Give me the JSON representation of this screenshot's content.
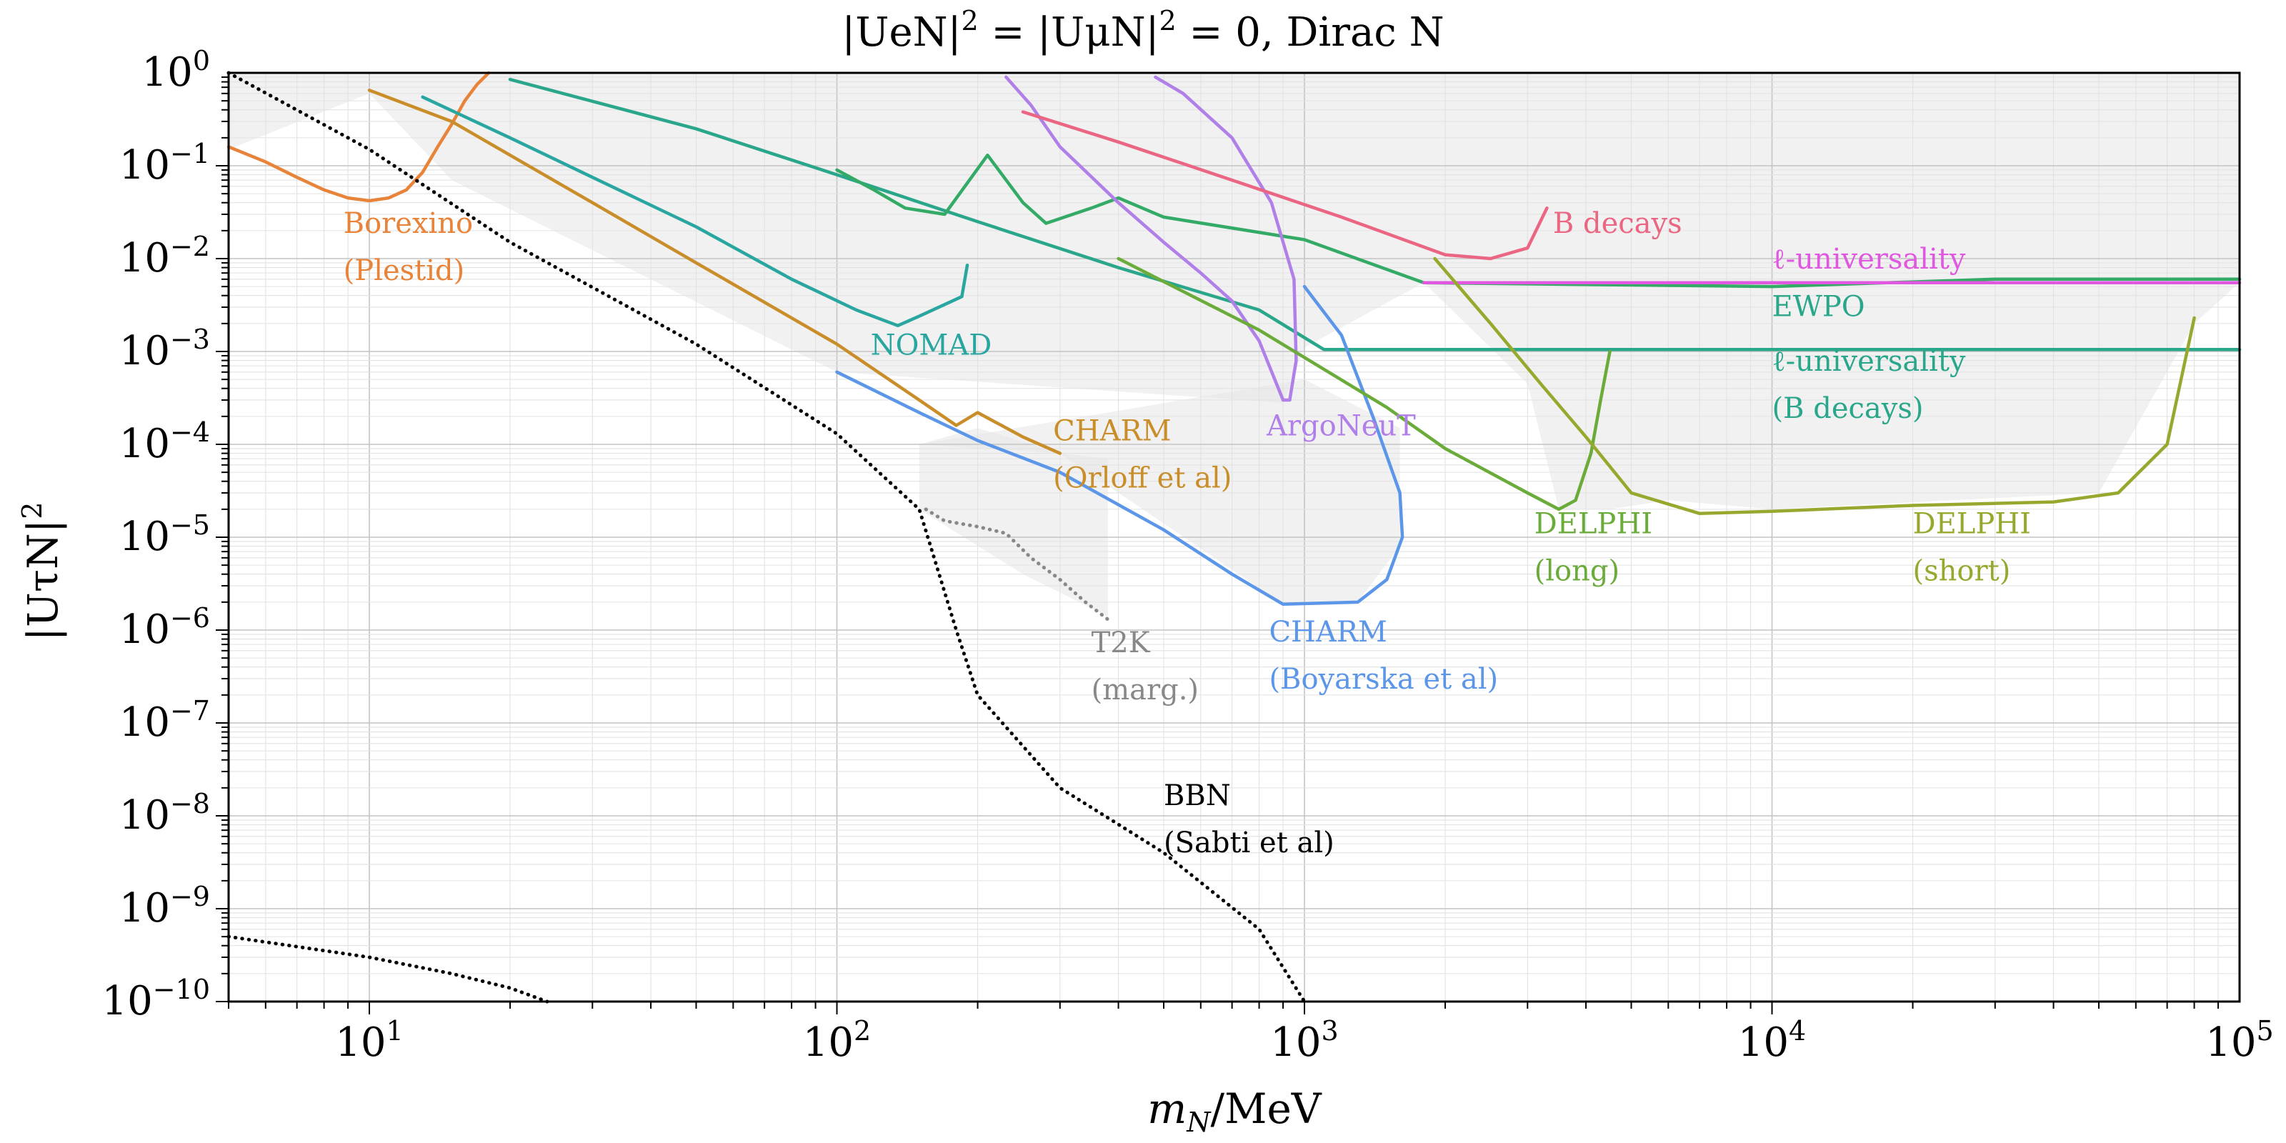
{
  "chart_data": {
    "type": "line",
    "title": "|U_eN|^2 = |U_μN|^2 = 0, Dirac N",
    "xlabel": "m_N/MeV",
    "ylabel": "|U_τN|^2",
    "x_scale": "log",
    "y_scale": "log",
    "xlim": [
      5,
      100000
    ],
    "ylim": [
      1e-10,
      1
    ],
    "grid": true,
    "x_ticks": [
      {
        "value": 10,
        "label": "10^1"
      },
      {
        "value": 100,
        "label": "10^2"
      },
      {
        "value": 1000,
        "label": "10^3"
      },
      {
        "value": 10000,
        "label": "10^4"
      },
      {
        "value": 100000,
        "label": "10^5"
      }
    ],
    "y_ticks": [
      {
        "value": 1,
        "label": "10^0"
      },
      {
        "value": 0.1,
        "label": "10^-1"
      },
      {
        "value": 0.01,
        "label": "10^-2"
      },
      {
        "value": 0.001,
        "label": "10^-3"
      },
      {
        "value": 0.0001,
        "label": "10^-4"
      },
      {
        "value": 1e-05,
        "label": "10^-5"
      },
      {
        "value": 1e-06,
        "label": "10^-6"
      },
      {
        "value": 1e-07,
        "label": "10^-7"
      },
      {
        "value": 1e-08,
        "label": "10^-8"
      },
      {
        "value": 1e-09,
        "label": "10^-9"
      },
      {
        "value": 1e-10,
        "label": "10^-10"
      }
    ],
    "shading": {
      "color": "#e6e6e6",
      "regions": [
        [
          [
            5,
            1
          ],
          [
            100000,
            1
          ],
          [
            100000,
            0.0055
          ],
          [
            1800,
            0.0055
          ],
          [
            1000,
            0.0011
          ],
          [
            900,
            0.00028
          ],
          [
            100,
            0.0006
          ],
          [
            15,
            0.07
          ],
          [
            10,
            0.6
          ],
          [
            5,
            0.15
          ]
        ],
        [
          [
            150,
            0.0001
          ],
          [
            200,
            0.00015
          ],
          [
            300,
            8e-05
          ],
          [
            380,
            7e-05
          ],
          [
            380,
            1.4e-06
          ],
          [
            250,
            4e-06
          ],
          [
            150,
            2e-05
          ]
        ],
        [
          [
            150,
            0.0001
          ],
          [
            300,
            8e-05
          ],
          [
            900,
            1.9e-06
          ],
          [
            1300,
            2e-06
          ],
          [
            1600,
            8e-06
          ],
          [
            1600,
            0.00015
          ],
          [
            1000,
            0.0005
          ]
        ],
        [
          [
            1800,
            0.0055
          ],
          [
            3000,
            0.00045
          ],
          [
            3500,
            2e-05
          ],
          [
            4500,
            2e-05
          ],
          [
            6000,
            2.5e-05
          ],
          [
            10000,
            2e-05
          ],
          [
            50000,
            3e-05
          ],
          [
            80000,
            0.002
          ],
          [
            100000,
            0.0055
          ]
        ]
      ]
    },
    "series": [
      {
        "label": "Borexino (Plestid)",
        "color": "#e8833a",
        "style": "solid",
        "points": [
          [
            5,
            0.16
          ],
          [
            6,
            0.11
          ],
          [
            7,
            0.075
          ],
          [
            8,
            0.055
          ],
          [
            9,
            0.045
          ],
          [
            10,
            0.042
          ],
          [
            11,
            0.045
          ],
          [
            12,
            0.055
          ],
          [
            13,
            0.085
          ],
          [
            14,
            0.16
          ],
          [
            15,
            0.28
          ],
          [
            16,
            0.5
          ],
          [
            17,
            0.75
          ],
          [
            18,
            1
          ]
        ]
      },
      {
        "label": "CHARM (Orloff et al)",
        "color": "#c98e2a",
        "style": "solid",
        "points": [
          [
            10,
            0.65
          ],
          [
            15,
            0.3
          ],
          [
            20,
            0.13
          ],
          [
            30,
            0.04
          ],
          [
            50,
            0.009
          ],
          [
            100,
            0.0012
          ],
          [
            150,
            0.0003
          ],
          [
            180,
            0.00016
          ],
          [
            200,
            0.00022
          ],
          [
            250,
            0.00012
          ],
          [
            300,
            8e-05
          ]
        ]
      },
      {
        "label": "NOMAD",
        "color": "#2aa6a0",
        "style": "solid",
        "points": [
          [
            13,
            0.55
          ],
          [
            20,
            0.2
          ],
          [
            30,
            0.075
          ],
          [
            50,
            0.022
          ],
          [
            80,
            0.006
          ],
          [
            110,
            0.0028
          ],
          [
            135,
            0.0019
          ],
          [
            150,
            0.0024
          ],
          [
            170,
            0.0032
          ],
          [
            185,
            0.0039
          ],
          [
            190,
            0.0085
          ]
        ]
      },
      {
        "label": "ℓ-universality (B decays)",
        "color": "#2aa68a",
        "style": "solid",
        "points": [
          [
            20,
            0.85
          ],
          [
            50,
            0.25
          ],
          [
            100,
            0.08
          ],
          [
            200,
            0.025
          ],
          [
            400,
            0.008
          ],
          [
            800,
            0.0028
          ],
          [
            1100,
            0.00105
          ],
          [
            3000,
            0.00105
          ],
          [
            100000,
            0.00105
          ]
        ]
      },
      {
        "label": "EWPO",
        "color": "#33aa66",
        "style": "solid",
        "points": [
          [
            100,
            0.09
          ],
          [
            120,
            0.055
          ],
          [
            140,
            0.035
          ],
          [
            170,
            0.03
          ],
          [
            210,
            0.13
          ],
          [
            250,
            0.04
          ],
          [
            280,
            0.024
          ],
          [
            350,
            0.035
          ],
          [
            400,
            0.045
          ],
          [
            500,
            0.028
          ],
          [
            1000,
            0.016
          ],
          [
            1800,
            0.0055
          ],
          [
            10000,
            0.005
          ],
          [
            30000,
            0.006
          ],
          [
            100000,
            0.006
          ]
        ]
      },
      {
        "label": "ArgoNeuT",
        "color": "#b07fe8",
        "style": "solid",
        "points": [
          [
            230,
            0.9
          ],
          [
            260,
            0.45
          ],
          [
            300,
            0.16
          ],
          [
            400,
            0.04
          ],
          [
            500,
            0.015
          ],
          [
            600,
            0.007
          ],
          [
            700,
            0.0035
          ],
          [
            800,
            0.0013
          ],
          [
            900,
            0.0003
          ],
          [
            930,
            0.0003
          ],
          [
            960,
            0.0008
          ],
          [
            950,
            0.006
          ],
          [
            850,
            0.04
          ],
          [
            700,
            0.2
          ],
          [
            550,
            0.6
          ],
          [
            480,
            0.9
          ]
        ]
      },
      {
        "label": "B decays",
        "color": "#ea6683",
        "style": "solid",
        "points": [
          [
            250,
            0.38
          ],
          [
            400,
            0.18
          ],
          [
            700,
            0.07
          ],
          [
            1200,
            0.028
          ],
          [
            2000,
            0.011
          ],
          [
            2500,
            0.01
          ],
          [
            3000,
            0.013
          ],
          [
            3300,
            0.035
          ]
        ]
      },
      {
        "label": "ℓ-universality",
        "color": "#e058e0",
        "style": "solid",
        "points": [
          [
            1800,
            0.0055
          ],
          [
            100000,
            0.0055
          ]
        ]
      },
      {
        "label": "CHARM (Boyarska et al)",
        "color": "#5b96e8",
        "style": "solid",
        "points": [
          [
            100,
            0.0006
          ],
          [
            150,
            0.00022
          ],
          [
            200,
            0.00011
          ],
          [
            300,
            5e-05
          ],
          [
            500,
            1.2e-05
          ],
          [
            700,
            4e-06
          ],
          [
            900,
            1.9e-06
          ],
          [
            1300,
            2e-06
          ],
          [
            1500,
            3.5e-06
          ],
          [
            1620,
            1e-05
          ],
          [
            1600,
            3e-05
          ],
          [
            1400,
            0.0002
          ],
          [
            1200,
            0.0015
          ],
          [
            1000,
            0.005
          ]
        ]
      },
      {
        "label": "DELPHI (long)",
        "color": "#6aab3a",
        "style": "solid",
        "points": [
          [
            400,
            0.01
          ],
          [
            800,
            0.0017
          ],
          [
            1500,
            0.00025
          ],
          [
            2000,
            9e-05
          ],
          [
            3000,
            3e-05
          ],
          [
            3500,
            2e-05
          ],
          [
            3800,
            2.5e-05
          ],
          [
            4100,
            8e-05
          ],
          [
            4300,
            0.0003
          ],
          [
            4500,
            0.001
          ]
        ]
      },
      {
        "label": "DELPHI (short)",
        "color": "#98a82e",
        "style": "solid",
        "points": [
          [
            1900,
            0.01
          ],
          [
            2500,
            0.002
          ],
          [
            3200,
            0.00045
          ],
          [
            4000,
            0.00012
          ],
          [
            5000,
            3e-05
          ],
          [
            7000,
            1.8e-05
          ],
          [
            10000,
            1.9e-05
          ],
          [
            20000,
            2.2e-05
          ],
          [
            40000,
            2.4e-05
          ],
          [
            55000,
            3e-05
          ],
          [
            70000,
            0.0001
          ],
          [
            80000,
            0.0023
          ]
        ]
      },
      {
        "label": "T2K (marg.)",
        "color": "#888888",
        "style": "dotted",
        "points": [
          [
            155,
            2e-05
          ],
          [
            170,
            1.5e-05
          ],
          [
            200,
            1.3e-05
          ],
          [
            230,
            1.1e-05
          ],
          [
            260,
            6e-06
          ],
          [
            300,
            3.5e-06
          ],
          [
            340,
            2e-06
          ],
          [
            380,
            1.3e-06
          ]
        ]
      },
      {
        "label": "BBN (Sabti et al)",
        "color": "#000000",
        "style": "dotted",
        "points": [
          [
            5,
            1
          ],
          [
            10,
            0.15
          ],
          [
            20,
            0.015
          ],
          [
            50,
            0.0012
          ],
          [
            100,
            0.00013
          ],
          [
            150,
            2e-05
          ],
          [
            180,
            1e-06
          ],
          [
            200,
            2e-07
          ],
          [
            300,
            2e-08
          ],
          [
            500,
            4e-09
          ],
          [
            800,
            6e-10
          ],
          [
            1000,
            1e-10
          ]
        ]
      },
      {
        "label": "BBN lower",
        "color": "#000000",
        "style": "dotted",
        "points": [
          [
            5,
            5e-10
          ],
          [
            10,
            3e-10
          ],
          [
            15,
            2e-10
          ],
          [
            20,
            1.4e-10
          ],
          [
            24,
            1e-10
          ]
        ]
      }
    ],
    "annotations": [
      {
        "lines": [
          "Borexino",
          "(Plestid)"
        ],
        "at": [
          8.8,
          0.019
        ],
        "color": "#e8833a"
      },
      {
        "lines": [
          "NOMAD"
        ],
        "at": [
          118,
          0.00092
        ],
        "color": "#2aa6a0"
      },
      {
        "lines": [
          "CHARM",
          "(Orloff et al)"
        ],
        "at": [
          290,
          0.00011
        ],
        "color": "#c98e2a"
      },
      {
        "lines": [
          "ArgoNeuT"
        ],
        "at": [
          830,
          0.000125
        ],
        "color": "#b07fe8"
      },
      {
        "lines": [
          "T2K",
          "(marg.)"
        ],
        "at": [
          350,
          5.8e-07
        ],
        "color": "#888888"
      },
      {
        "lines": [
          "CHARM",
          "(Boyarska et al)"
        ],
        "at": [
          840,
          7.5e-07
        ],
        "color": "#5b96e8"
      },
      {
        "lines": [
          "BBN",
          "(Sabti et al)"
        ],
        "at": [
          500,
          1.3e-08
        ],
        "color": "#000000"
      },
      {
        "lines": [
          "DELPHI",
          "(long)"
        ],
        "at": [
          3100,
          1.1e-05
        ],
        "color": "#6aab3a"
      },
      {
        "lines": [
          "DELPHI",
          "(short)"
        ],
        "at": [
          20000,
          1.1e-05
        ],
        "color": "#98a82e"
      },
      {
        "lines": [
          "B decays"
        ],
        "at": [
          3400,
          0.019
        ],
        "color": "#ea6683"
      },
      {
        "lines": [
          "ℓ-universality"
        ],
        "at": [
          10000,
          0.0078
        ],
        "color": "#e058e0"
      },
      {
        "lines": [
          "EWPO"
        ],
        "at": [
          10000,
          0.0024
        ],
        "color": "#2aa68a"
      },
      {
        "lines": [
          "ℓ-universality",
          "(B decays)"
        ],
        "at": [
          10000,
          0.00062
        ],
        "color": "#2aa68a"
      }
    ]
  }
}
